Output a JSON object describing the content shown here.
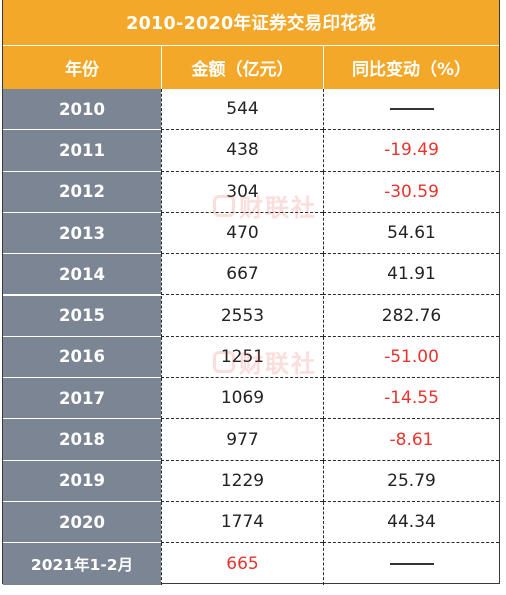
{
  "table": {
    "title": "2010-2020年证券交易印花税",
    "headers": [
      "年份",
      "金额（亿元）",
      "同比变动（%）"
    ],
    "rows": [
      {
        "year": "2010",
        "amount": "544",
        "change": "——",
        "change_type": "none"
      },
      {
        "year": "2011",
        "amount": "438",
        "change": "-19.49",
        "change_type": "negative"
      },
      {
        "year": "2012",
        "amount": "304",
        "change": "-30.59",
        "change_type": "negative"
      },
      {
        "year": "2013",
        "amount": "470",
        "change": "54.61",
        "change_type": "positive"
      },
      {
        "year": "2014",
        "amount": "667",
        "change": "41.91",
        "change_type": "positive"
      },
      {
        "year": "2015",
        "amount": "2553",
        "change": "282.76",
        "change_type": "positive"
      },
      {
        "year": "2016",
        "amount": "1251",
        "change": "-51.00",
        "change_type": "negative"
      },
      {
        "year": "2017",
        "amount": "1069",
        "change": "-14.55",
        "change_type": "negative"
      },
      {
        "year": "2018",
        "amount": "977",
        "change": "-8.61",
        "change_type": "negative"
      },
      {
        "year": "2019",
        "amount": "1229",
        "change": "25.79",
        "change_type": "positive"
      },
      {
        "year": "2020",
        "amount": "1774",
        "change": "44.34",
        "change_type": "positive"
      },
      {
        "year": "2021年1-2月",
        "amount": "665",
        "change": "——",
        "change_type": "none",
        "amount_highlight": true
      }
    ]
  },
  "watermark": {
    "text": "财联社"
  },
  "colors": {
    "header_bg": "#f4a82a",
    "year_col_bg": "#7c8593",
    "negative": "#e8342c",
    "text": "#222222"
  }
}
